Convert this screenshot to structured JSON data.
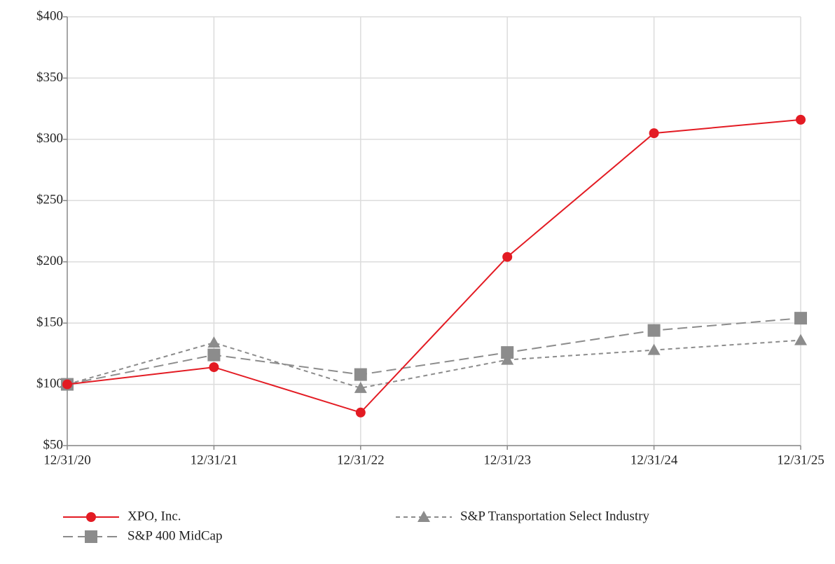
{
  "chart_data": {
    "type": "line",
    "categories": [
      "12/31/20",
      "12/31/21",
      "12/31/22",
      "12/31/23",
      "12/31/24",
      "12/31/25"
    ],
    "series": [
      {
        "name": "XPO, Inc.",
        "color": "#e31b23",
        "marker": "circle",
        "dash": "solid",
        "values": [
          100,
          114,
          77,
          204,
          305,
          316
        ]
      },
      {
        "name": "S&P Transportation Select Industry",
        "color": "#8c8c8c",
        "marker": "triangle",
        "dash": "short",
        "values": [
          100,
          134,
          97,
          120,
          128,
          136
        ]
      },
      {
        "name": "S&P 400 MidCap",
        "color": "#8c8c8c",
        "marker": "square",
        "dash": "long",
        "values": [
          100,
          124,
          108,
          126,
          144,
          154
        ]
      }
    ],
    "ylim": [
      50,
      400
    ],
    "yticks": [
      {
        "value": 50,
        "label": "$50"
      },
      {
        "value": 100,
        "label": "$100"
      },
      {
        "value": 150,
        "label": "$150"
      },
      {
        "value": 200,
        "label": "$200"
      },
      {
        "value": 250,
        "label": "$250"
      },
      {
        "value": 300,
        "label": "$300"
      },
      {
        "value": 350,
        "label": "$350"
      },
      {
        "value": 400,
        "label": "$400"
      }
    ],
    "grid": true
  }
}
